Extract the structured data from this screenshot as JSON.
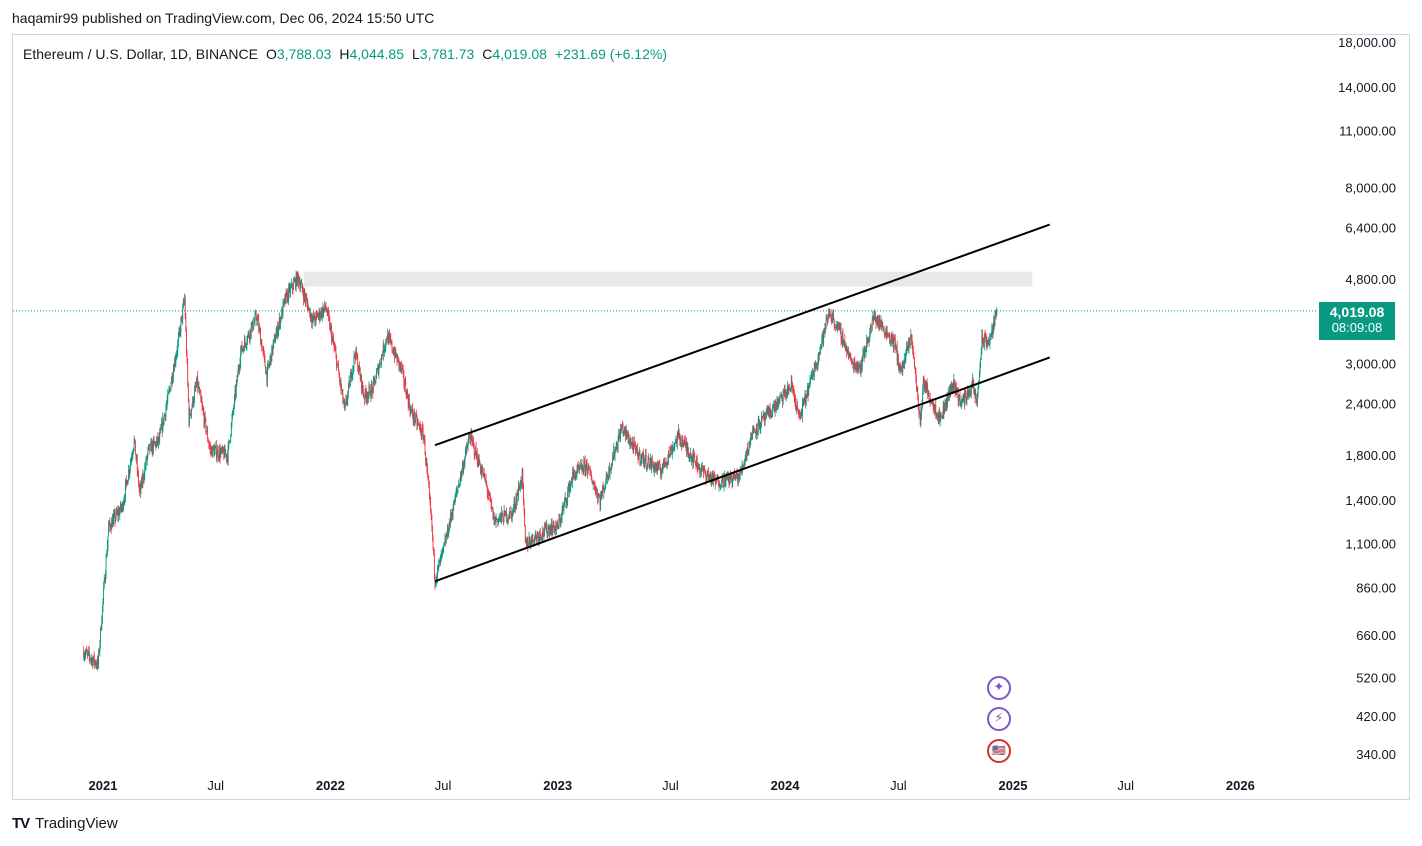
{
  "header": {
    "published_line": "haqamir99 published on TradingView.com, Dec 06, 2024 15:50 UTC"
  },
  "legend": {
    "symbol": "Ethereum / U.S. Dollar, 1D, BINANCE",
    "o_label": "O",
    "o_value": "3,788.03",
    "h_label": "H",
    "h_value": "4,044.85",
    "l_label": "L",
    "l_value": "3,781.73",
    "c_label": "C",
    "c_value": "4,019.08",
    "change": "+231.69 (+6.12%)"
  },
  "price_tag": {
    "price": "4,019.08",
    "countdown": "08:09:08"
  },
  "brand": {
    "name": "TradingView",
    "logo": "TV"
  },
  "events": [
    {
      "icon": "sparkle-icon",
      "glyph": "✦"
    },
    {
      "icon": "lightning-icon",
      "glyph": "⚡"
    },
    {
      "icon": "us-flag-icon",
      "glyph": "🇺🇸"
    }
  ],
  "colors": {
    "up": "#089981",
    "down": "#f23645",
    "line": "#000000",
    "zone": "#e8e8ea",
    "tag": "#089981"
  },
  "chart_data": {
    "type": "candlestick",
    "title": "Ethereum / U.S. Dollar, 1D, BINANCE",
    "y_scale": "log",
    "y_ticks": [
      "18,000.00",
      "14,000.00",
      "11,000.00",
      "8,000.00",
      "6,400.00",
      "4,800.00",
      "3,000.00",
      "2,400.00",
      "1,800.00",
      "1,400.00",
      "1,100.00",
      "860.00",
      "660.00",
      "520.00",
      "420.00",
      "340.00"
    ],
    "x_ticks": [
      {
        "label": "2021",
        "bold": true
      },
      {
        "label": "Jul",
        "bold": false
      },
      {
        "label": "2022",
        "bold": true
      },
      {
        "label": "Jul",
        "bold": false
      },
      {
        "label": "2023",
        "bold": true
      },
      {
        "label": "Jul",
        "bold": false
      },
      {
        "label": "2024",
        "bold": true
      },
      {
        "label": "Jul",
        "bold": false
      },
      {
        "label": "2025",
        "bold": true
      },
      {
        "label": "Jul",
        "bold": false
      },
      {
        "label": "2026",
        "bold": true
      }
    ],
    "price_path": [
      [
        "2020-12-01",
        600
      ],
      [
        "2020-12-24",
        560
      ],
      [
        "2021-01-10",
        1200
      ],
      [
        "2021-02-01",
        1350
      ],
      [
        "2021-02-20",
        1950
      ],
      [
        "2021-03-01",
        1450
      ],
      [
        "2021-03-15",
        1850
      ],
      [
        "2021-04-01",
        1950
      ],
      [
        "2021-04-16",
        2500
      ],
      [
        "2021-05-02",
        3400
      ],
      [
        "2021-05-12",
        4300
      ],
      [
        "2021-05-19",
        2200
      ],
      [
        "2021-06-01",
        2700
      ],
      [
        "2021-06-22",
        1850
      ],
      [
        "2021-07-20",
        1800
      ],
      [
        "2021-08-10",
        3200
      ],
      [
        "2021-09-05",
        3900
      ],
      [
        "2021-09-21",
        2800
      ],
      [
        "2021-10-01",
        3300
      ],
      [
        "2021-10-21",
        4300
      ],
      [
        "2021-11-10",
        4850
      ],
      [
        "2021-12-04",
        3800
      ],
      [
        "2021-12-25",
        4100
      ],
      [
        "2022-01-10",
        3100
      ],
      [
        "2022-01-24",
        2300
      ],
      [
        "2022-02-10",
        3200
      ],
      [
        "2022-02-24",
        2500
      ],
      [
        "2022-03-10",
        2600
      ],
      [
        "2022-04-02",
        3500
      ],
      [
        "2022-04-25",
        2900
      ],
      [
        "2022-05-10",
        2300
      ],
      [
        "2022-05-31",
        2000
      ],
      [
        "2022-06-13",
        1200
      ],
      [
        "2022-06-18",
        900
      ],
      [
        "2022-07-01",
        1050
      ],
      [
        "2022-07-15",
        1300
      ],
      [
        "2022-08-13",
        2000
      ],
      [
        "2022-09-07",
        1550
      ],
      [
        "2022-09-21",
        1250
      ],
      [
        "2022-10-20",
        1300
      ],
      [
        "2022-11-05",
        1600
      ],
      [
        "2022-11-10",
        1100
      ],
      [
        "2022-12-20",
        1200
      ],
      [
        "2023-01-01",
        1200
      ],
      [
        "2023-01-25",
        1600
      ],
      [
        "2023-02-16",
        1700
      ],
      [
        "2023-03-10",
        1400
      ],
      [
        "2023-04-14",
        2100
      ],
      [
        "2023-05-10",
        1800
      ],
      [
        "2023-06-15",
        1650
      ],
      [
        "2023-07-14",
        2000
      ],
      [
        "2023-08-20",
        1650
      ],
      [
        "2023-09-12",
        1550
      ],
      [
        "2023-10-20",
        1600
      ],
      [
        "2023-11-10",
        2050
      ],
      [
        "2023-12-10",
        2300
      ],
      [
        "2024-01-12",
        2650
      ],
      [
        "2024-01-24",
        2200
      ],
      [
        "2024-02-25",
        3200
      ],
      [
        "2024-03-12",
        4000
      ],
      [
        "2024-04-01",
        3500
      ],
      [
        "2024-04-17",
        3000
      ],
      [
        "2024-05-01",
        2950
      ],
      [
        "2024-05-23",
        3900
      ],
      [
        "2024-06-10",
        3600
      ],
      [
        "2024-06-25",
        3350
      ],
      [
        "2024-07-05",
        2850
      ],
      [
        "2024-07-22",
        3500
      ],
      [
        "2024-08-05",
        2150
      ],
      [
        "2024-08-10",
        2700
      ],
      [
        "2024-09-06",
        2200
      ],
      [
        "2024-09-27",
        2700
      ],
      [
        "2024-10-10",
        2400
      ],
      [
        "2024-10-28",
        2650
      ],
      [
        "2024-11-04",
        2400
      ],
      [
        "2024-11-12",
        3400
      ],
      [
        "2024-11-25",
        3400
      ],
      [
        "2024-12-06",
        4019
      ]
    ],
    "channel_upper": [
      [
        "2022-06-18",
        1900
      ],
      [
        "2025-03-01",
        6500
      ]
    ],
    "channel_lower": [
      [
        "2022-06-18",
        890
      ],
      [
        "2025-03-01",
        3100
      ]
    ],
    "resistance_zone": {
      "from": "2021-11-20",
      "to": "2025-02-01",
      "low": 4600,
      "high": 5000
    },
    "last_price": 4019.08
  }
}
